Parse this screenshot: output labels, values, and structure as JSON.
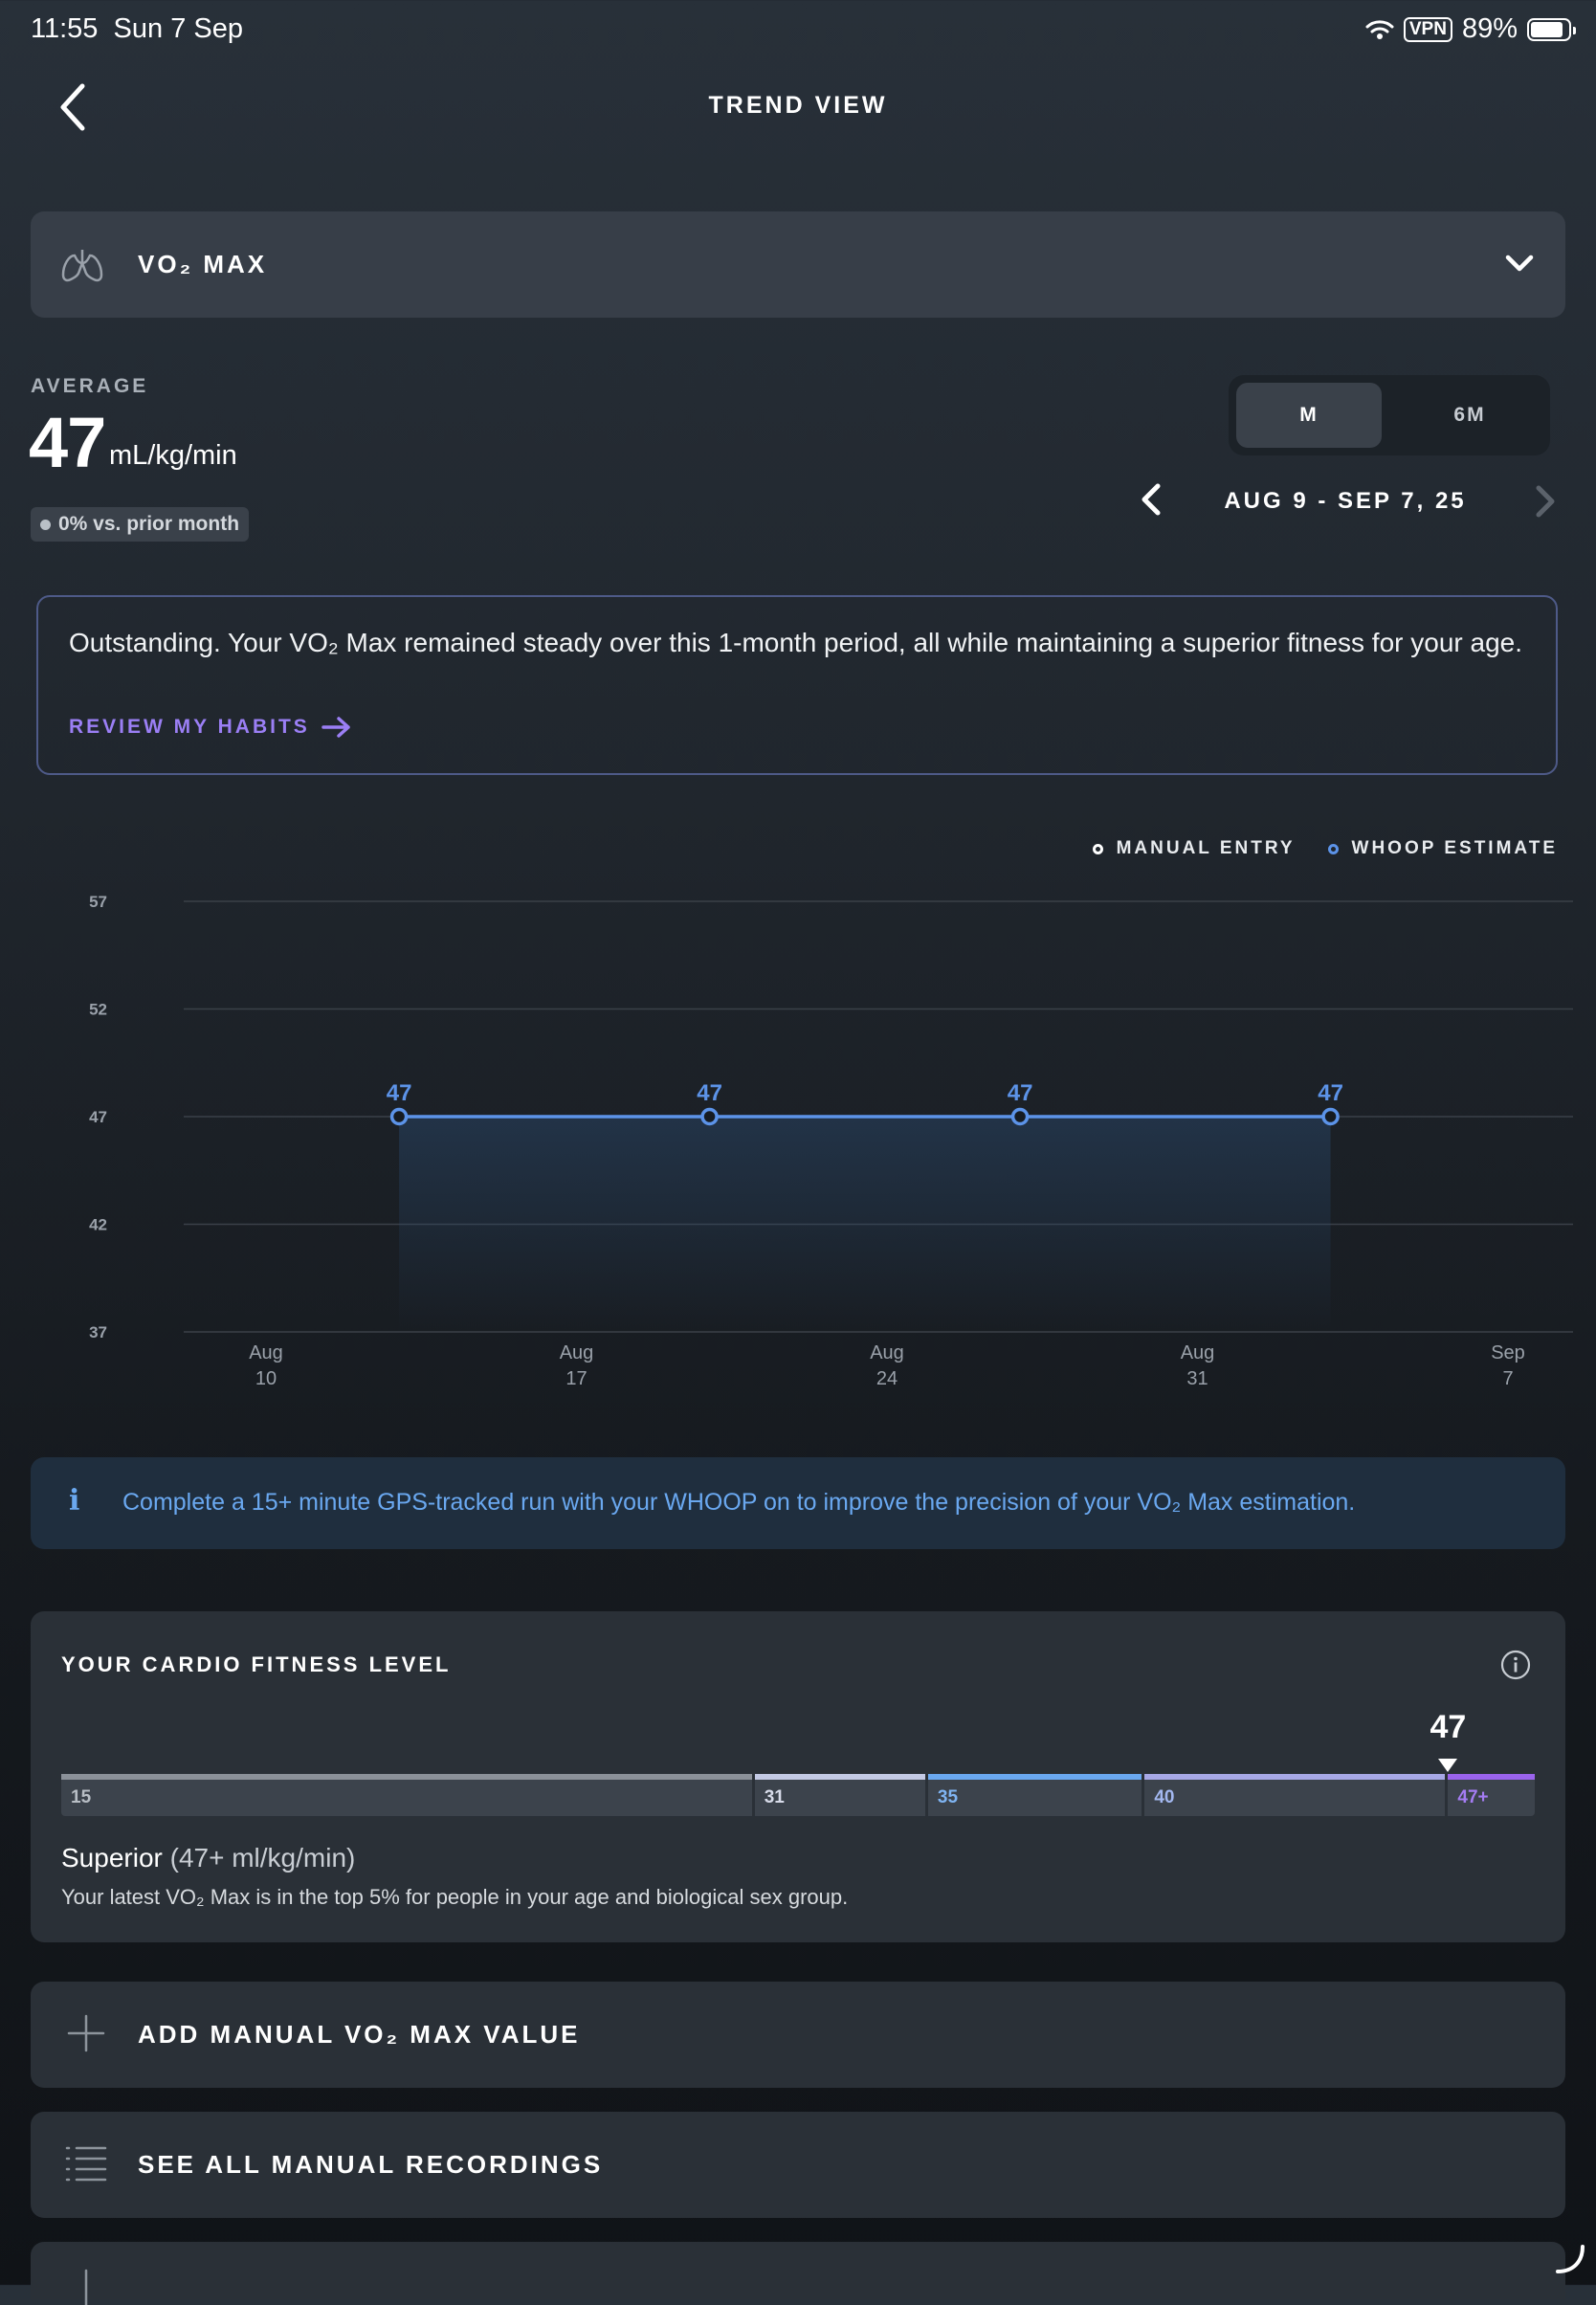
{
  "status_bar": {
    "time": "11:55",
    "date": "Sun 7 Sep",
    "vpn": "VPN",
    "battery": "89%",
    "battery_level": 0.89
  },
  "header": {
    "title": "TREND VIEW"
  },
  "metric_selector": {
    "label": "VO₂ MAX",
    "icon": "lungs-icon"
  },
  "average": {
    "label": "AVERAGE",
    "value": "47",
    "unit": "mL/kg/min",
    "change": "0% vs. prior month"
  },
  "period": {
    "options": [
      "M",
      "6M"
    ],
    "selected": "M",
    "range": "AUG 9 - SEP 7, 25"
  },
  "insight": {
    "text": "Outstanding. Your VO₂ Max remained steady over this 1-month period, all while maintaining a superior fitness for your age.",
    "link": "REVIEW MY HABITS"
  },
  "legend": {
    "manual": "MANUAL ENTRY",
    "estimate": "WHOOP ESTIMATE"
  },
  "chart_data": {
    "type": "line",
    "y_ticks": [
      "57",
      "52",
      "47",
      "42",
      "37"
    ],
    "ylim": [
      37,
      57
    ],
    "x_ticks": [
      {
        "date": "2025-08-10",
        "line1": "Aug",
        "line2": "10"
      },
      {
        "date": "2025-08-17",
        "line1": "Aug",
        "line2": "17"
      },
      {
        "date": "2025-08-24",
        "line1": "Aug",
        "line2": "24"
      },
      {
        "date": "2025-08-31",
        "line1": "Aug",
        "line2": "31"
      },
      {
        "date": "2025-09-07",
        "line1": "Sep",
        "line2": "7"
      }
    ],
    "xlim": [
      "2025-08-09",
      "2025-09-07"
    ],
    "series": [
      {
        "name": "WHOOP ESTIMATE",
        "color": "#5c93e8",
        "points": [
          {
            "x": "2025-08-13",
            "y": 47,
            "label": "47"
          },
          {
            "x": "2025-08-20",
            "y": 47,
            "label": "47"
          },
          {
            "x": "2025-08-27",
            "y": 47,
            "label": "47"
          },
          {
            "x": "2025-09-03",
            "y": 47,
            "label": "47"
          }
        ]
      }
    ],
    "grid": true,
    "legend_position": "top-right"
  },
  "info_banner": {
    "text": "Complete a 15+ minute GPS-tracked run with your WHOOP on to improve the precision of your VO₂ Max estimation."
  },
  "fitness": {
    "title": "YOUR CARDIO FITNESS LEVEL",
    "value": 47,
    "value_label": "47",
    "segments": [
      {
        "label": "15",
        "from": 15,
        "to": 31,
        "color": "#8b9199",
        "text_color": "#b8bec5"
      },
      {
        "label": "31",
        "from": 31,
        "to": 35,
        "color": "#c3c9e4",
        "text_color": "#d8dcea"
      },
      {
        "label": "35",
        "from": 35,
        "to": 40,
        "color": "#6aa8f0",
        "text_color": "#7fb4f2"
      },
      {
        "label": "40",
        "from": 40,
        "to": 47,
        "color": "#a7a8e6",
        "text_color": "#a3b8f0"
      },
      {
        "label": "47+",
        "from": 47,
        "to": 49,
        "color": "#9a63ec",
        "text_color": "#a47cf2"
      }
    ],
    "level": "Superior",
    "level_range": "(47+ ml/kg/min)",
    "description": "Your latest VO₂ Max is in the top 5% for people in your age and biological sex group."
  },
  "actions": [
    {
      "label": "ADD MANUAL VO₂ MAX VALUE",
      "icon": "plus-icon"
    },
    {
      "label": "SEE ALL MANUAL RECORDINGS",
      "icon": "list-icon"
    }
  ]
}
